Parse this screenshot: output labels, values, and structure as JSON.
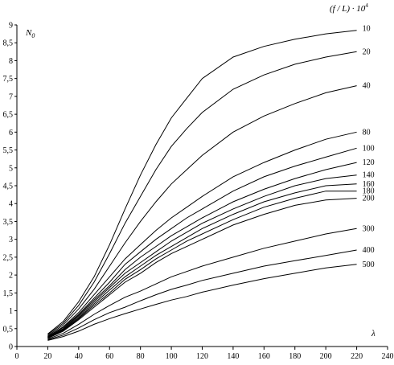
{
  "chart_data": {
    "type": "line",
    "ylabel_main": "N",
    "ylabel_sub": "0",
    "xlabel": "λ",
    "legend_header": "(f / L) · 10",
    "legend_header_sup": "4",
    "xlim": [
      0,
      240
    ],
    "ylim": [
      0,
      9
    ],
    "xticks": [
      0,
      20,
      40,
      60,
      80,
      100,
      120,
      140,
      160,
      180,
      200,
      220,
      240
    ],
    "yticks": [
      "0",
      "0,5",
      "1",
      "1,5",
      "2",
      "2,5",
      "3",
      "3,5",
      "4",
      "4,5",
      "5",
      "5,5",
      "6",
      "6,5",
      "7",
      "7,5",
      "8",
      "8,5",
      "9"
    ],
    "series": [
      {
        "name": "10",
        "x": [
          20,
          30,
          40,
          50,
          60,
          70,
          80,
          90,
          100,
          110,
          120,
          140,
          160,
          180,
          200,
          220
        ],
        "y": [
          0.35,
          0.7,
          1.25,
          1.95,
          2.85,
          3.85,
          4.8,
          5.65,
          6.4,
          6.95,
          7.5,
          8.1,
          8.4,
          8.6,
          8.75,
          8.85
        ]
      },
      {
        "name": "20",
        "x": [
          20,
          30,
          40,
          50,
          60,
          70,
          80,
          90,
          100,
          110,
          120,
          140,
          160,
          180,
          200,
          220
        ],
        "y": [
          0.33,
          0.65,
          1.15,
          1.8,
          2.6,
          3.45,
          4.2,
          4.95,
          5.6,
          6.1,
          6.55,
          7.2,
          7.6,
          7.9,
          8.1,
          8.25
        ]
      },
      {
        "name": "40",
        "x": [
          20,
          30,
          40,
          50,
          60,
          70,
          80,
          90,
          100,
          110,
          120,
          140,
          160,
          180,
          200,
          220
        ],
        "y": [
          0.3,
          0.6,
          1.05,
          1.6,
          2.25,
          2.9,
          3.5,
          4.05,
          4.55,
          4.95,
          5.35,
          6.0,
          6.45,
          6.8,
          7.1,
          7.3
        ]
      },
      {
        "name": "80",
        "x": [
          20,
          30,
          40,
          50,
          60,
          70,
          80,
          90,
          100,
          110,
          120,
          140,
          160,
          180,
          200,
          220
        ],
        "y": [
          0.28,
          0.55,
          0.95,
          1.45,
          1.95,
          2.45,
          2.85,
          3.25,
          3.6,
          3.9,
          4.2,
          4.75,
          5.15,
          5.5,
          5.8,
          6.0
        ]
      },
      {
        "name": "100",
        "x": [
          20,
          30,
          40,
          50,
          60,
          70,
          80,
          90,
          100,
          110,
          120,
          140,
          160,
          180,
          200,
          220
        ],
        "y": [
          0.27,
          0.53,
          0.9,
          1.35,
          1.8,
          2.3,
          2.65,
          3.0,
          3.3,
          3.6,
          3.85,
          4.35,
          4.75,
          5.05,
          5.3,
          5.55
        ]
      },
      {
        "name": "120",
        "x": [
          20,
          30,
          40,
          50,
          60,
          70,
          80,
          90,
          100,
          110,
          120,
          140,
          160,
          180,
          200,
          220
        ],
        "y": [
          0.26,
          0.5,
          0.87,
          1.3,
          1.7,
          2.15,
          2.5,
          2.8,
          3.1,
          3.35,
          3.6,
          4.05,
          4.4,
          4.7,
          4.95,
          5.15
        ]
      },
      {
        "name": "140",
        "x": [
          20,
          30,
          40,
          50,
          60,
          70,
          80,
          90,
          100,
          110,
          120,
          140,
          160,
          180,
          200,
          220
        ],
        "y": [
          0.25,
          0.48,
          0.84,
          1.25,
          1.65,
          2.05,
          2.35,
          2.65,
          2.95,
          3.2,
          3.45,
          3.85,
          4.2,
          4.5,
          4.7,
          4.8
        ]
      },
      {
        "name": "160",
        "x": [
          20,
          30,
          40,
          50,
          60,
          70,
          80,
          90,
          100,
          110,
          120,
          140,
          160,
          180,
          200,
          220
        ],
        "y": [
          0.24,
          0.46,
          0.8,
          1.2,
          1.58,
          1.95,
          2.25,
          2.55,
          2.8,
          3.05,
          3.3,
          3.7,
          4.05,
          4.3,
          4.5,
          4.55
        ]
      },
      {
        "name": "180",
        "x": [
          20,
          30,
          40,
          50,
          60,
          70,
          80,
          90,
          100,
          110,
          120,
          140,
          160,
          180,
          200,
          220
        ],
        "y": [
          0.24,
          0.45,
          0.78,
          1.15,
          1.5,
          1.88,
          2.15,
          2.45,
          2.7,
          2.95,
          3.15,
          3.55,
          3.9,
          4.15,
          4.35,
          4.35
        ]
      },
      {
        "name": "200",
        "x": [
          20,
          30,
          40,
          50,
          60,
          70,
          80,
          90,
          100,
          110,
          120,
          140,
          160,
          180,
          200,
          220
        ],
        "y": [
          0.23,
          0.43,
          0.75,
          1.1,
          1.45,
          1.8,
          2.05,
          2.35,
          2.6,
          2.8,
          3.0,
          3.4,
          3.7,
          3.95,
          4.1,
          4.15
        ]
      },
      {
        "name": "300",
        "x": [
          20,
          30,
          40,
          50,
          60,
          70,
          80,
          90,
          100,
          110,
          120,
          140,
          160,
          180,
          200,
          220
        ],
        "y": [
          0.21,
          0.37,
          0.62,
          0.9,
          1.15,
          1.38,
          1.55,
          1.75,
          1.95,
          2.1,
          2.25,
          2.5,
          2.75,
          2.95,
          3.15,
          3.3
        ]
      },
      {
        "name": "400",
        "x": [
          20,
          30,
          40,
          50,
          60,
          70,
          80,
          90,
          100,
          110,
          120,
          140,
          160,
          180,
          200,
          220
        ],
        "y": [
          0.19,
          0.32,
          0.52,
          0.75,
          0.95,
          1.1,
          1.28,
          1.45,
          1.6,
          1.72,
          1.85,
          2.05,
          2.25,
          2.4,
          2.55,
          2.7
        ]
      },
      {
        "name": "500",
        "x": [
          20,
          30,
          40,
          50,
          60,
          70,
          80,
          90,
          100,
          110,
          120,
          140,
          160,
          180,
          200,
          220
        ],
        "y": [
          0.17,
          0.28,
          0.43,
          0.62,
          0.78,
          0.92,
          1.05,
          1.18,
          1.3,
          1.4,
          1.52,
          1.72,
          1.9,
          2.05,
          2.2,
          2.3
        ]
      }
    ]
  }
}
